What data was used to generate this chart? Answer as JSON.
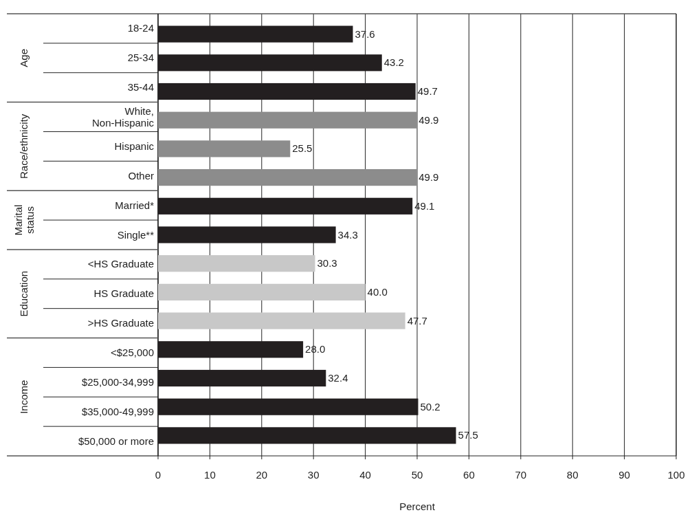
{
  "chart_data": {
    "type": "bar",
    "orientation": "horizontal",
    "xlabel": "Percent",
    "categories": [
      "18-24",
      "25-34",
      "35-44",
      "White,\nNon-Hispanic",
      "Hispanic",
      "Other",
      "Married*",
      "Single**",
      "<HS Graduate",
      "HS Graduate",
      ">HS Graduate",
      "<$25,000",
      "$25,000-34,999",
      "$35,000-49,999",
      "$50,000 or more"
    ],
    "values": [
      37.6,
      43.2,
      49.7,
      49.9,
      25.5,
      49.9,
      49.1,
      34.3,
      30.3,
      40.0,
      47.7,
      28.0,
      32.4,
      50.2,
      57.5
    ],
    "colors": [
      "#231f20",
      "#231f20",
      "#231f20",
      "#8c8c8c",
      "#8c8c8c",
      "#8c8c8c",
      "#231f20",
      "#231f20",
      "#c8c8c8",
      "#c8c8c8",
      "#c8c8c8",
      "#231f20",
      "#231f20",
      "#231f20",
      "#231f20"
    ],
    "annotations": [
      "Age",
      "Race/ethnicity",
      "Marital status",
      "Education",
      "Income"
    ],
    "value_labels": [
      "37.6",
      "43.2",
      "49.7",
      "49.9",
      "25.5",
      "49.9",
      "49.1",
      "34.3",
      "30.3",
      "40.0",
      "47.7",
      "28.0",
      "32.4",
      "50.2",
      "57.5"
    ],
    "xlim": [
      0,
      100
    ],
    "xticks": [
      0,
      10,
      20,
      30,
      40,
      50,
      60,
      70,
      80,
      90,
      100
    ],
    "grid": "x"
  }
}
